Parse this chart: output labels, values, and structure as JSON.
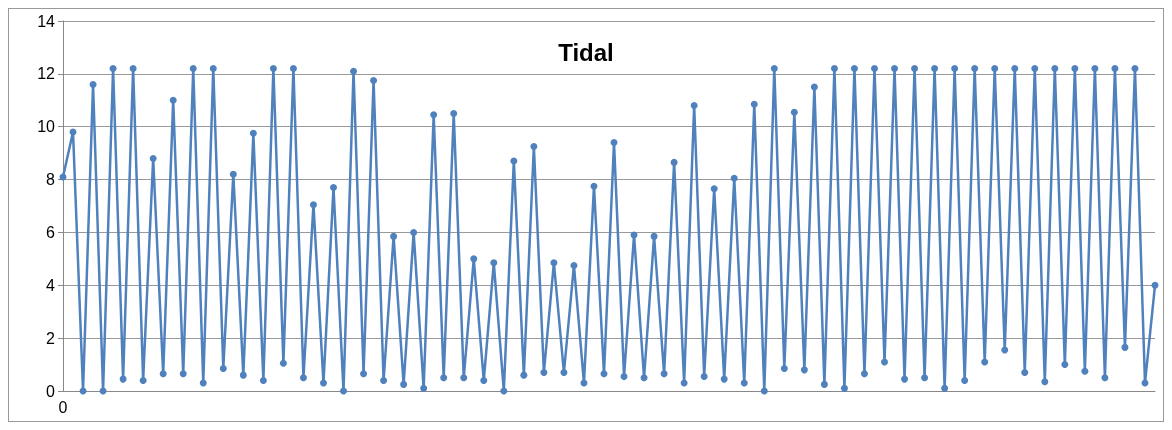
{
  "chart_data": {
    "type": "line",
    "title": "Tidal",
    "categories": [
      "0",
      null,
      null,
      null,
      null,
      null,
      null,
      null,
      null,
      null,
      null,
      null,
      null,
      null,
      null,
      null,
      null,
      null,
      null,
      null,
      null,
      null,
      null,
      null,
      null,
      null,
      null,
      null,
      null,
      null,
      null,
      null,
      null,
      null,
      null,
      null,
      null,
      null,
      null,
      null,
      null,
      null,
      null,
      null,
      null,
      null,
      null,
      null,
      null,
      null,
      null,
      null,
      null,
      null,
      null,
      null,
      null,
      null,
      null,
      null,
      null,
      null,
      null,
      null,
      null,
      null,
      null,
      null,
      null,
      null,
      null,
      null,
      null,
      null,
      null,
      null,
      null,
      null,
      null,
      null,
      null,
      null,
      null,
      null,
      null,
      null,
      null,
      null,
      null,
      null,
      null,
      null,
      null,
      null,
      null,
      null,
      null,
      null,
      null,
      null,
      null,
      null,
      null,
      null,
      null,
      null,
      null,
      null,
      null,
      null
    ],
    "series": [
      {
        "color": "#4f81bd",
        "values": [
          8.1,
          9.8,
          0,
          11.6,
          0,
          12.2,
          0.45,
          12.2,
          0.4,
          8.8,
          0.65,
          11.0,
          0.65,
          12.2,
          0.3,
          12.2,
          0.85,
          8.2,
          0.6,
          9.75,
          0.4,
          12.2,
          1.05,
          12.2,
          0.5,
          7.05,
          0.3,
          7.7,
          0,
          12.1,
          0.65,
          11.75,
          0.4,
          5.85,
          0.25,
          6.0,
          0.1,
          10.45,
          0.5,
          10.5,
          0.5,
          5.0,
          0.4,
          4.85,
          0,
          8.7,
          0.6,
          9.25,
          0.7,
          4.85,
          0.7,
          4.75,
          0.3,
          7.75,
          0.65,
          9.4,
          0.55,
          5.9,
          0.5,
          5.85,
          0.65,
          8.65,
          0.3,
          10.8,
          0.55,
          7.65,
          0.45,
          8.05,
          0.3,
          10.85,
          0,
          12.2,
          0.85,
          10.55,
          0.8,
          11.5,
          0.25,
          12.2,
          0.1,
          12.2,
          0.65,
          12.2,
          1.1,
          12.2,
          0.45,
          12.2,
          0.5,
          12.2,
          0.1,
          12.2,
          0.4,
          12.2,
          1.1,
          12.2,
          1.55,
          12.2,
          0.7,
          12.2,
          0.35,
          12.2,
          1.0,
          12.2,
          0.75,
          12.2,
          0.5,
          12.2,
          1.65,
          12.2,
          0.3,
          4.0
        ]
      }
    ],
    "ylim": [
      0,
      14
    ],
    "yticks": [
      0,
      2,
      4,
      6,
      8,
      10,
      12,
      14
    ],
    "grid": "y",
    "marker": "circle",
    "line_style": "solid"
  }
}
